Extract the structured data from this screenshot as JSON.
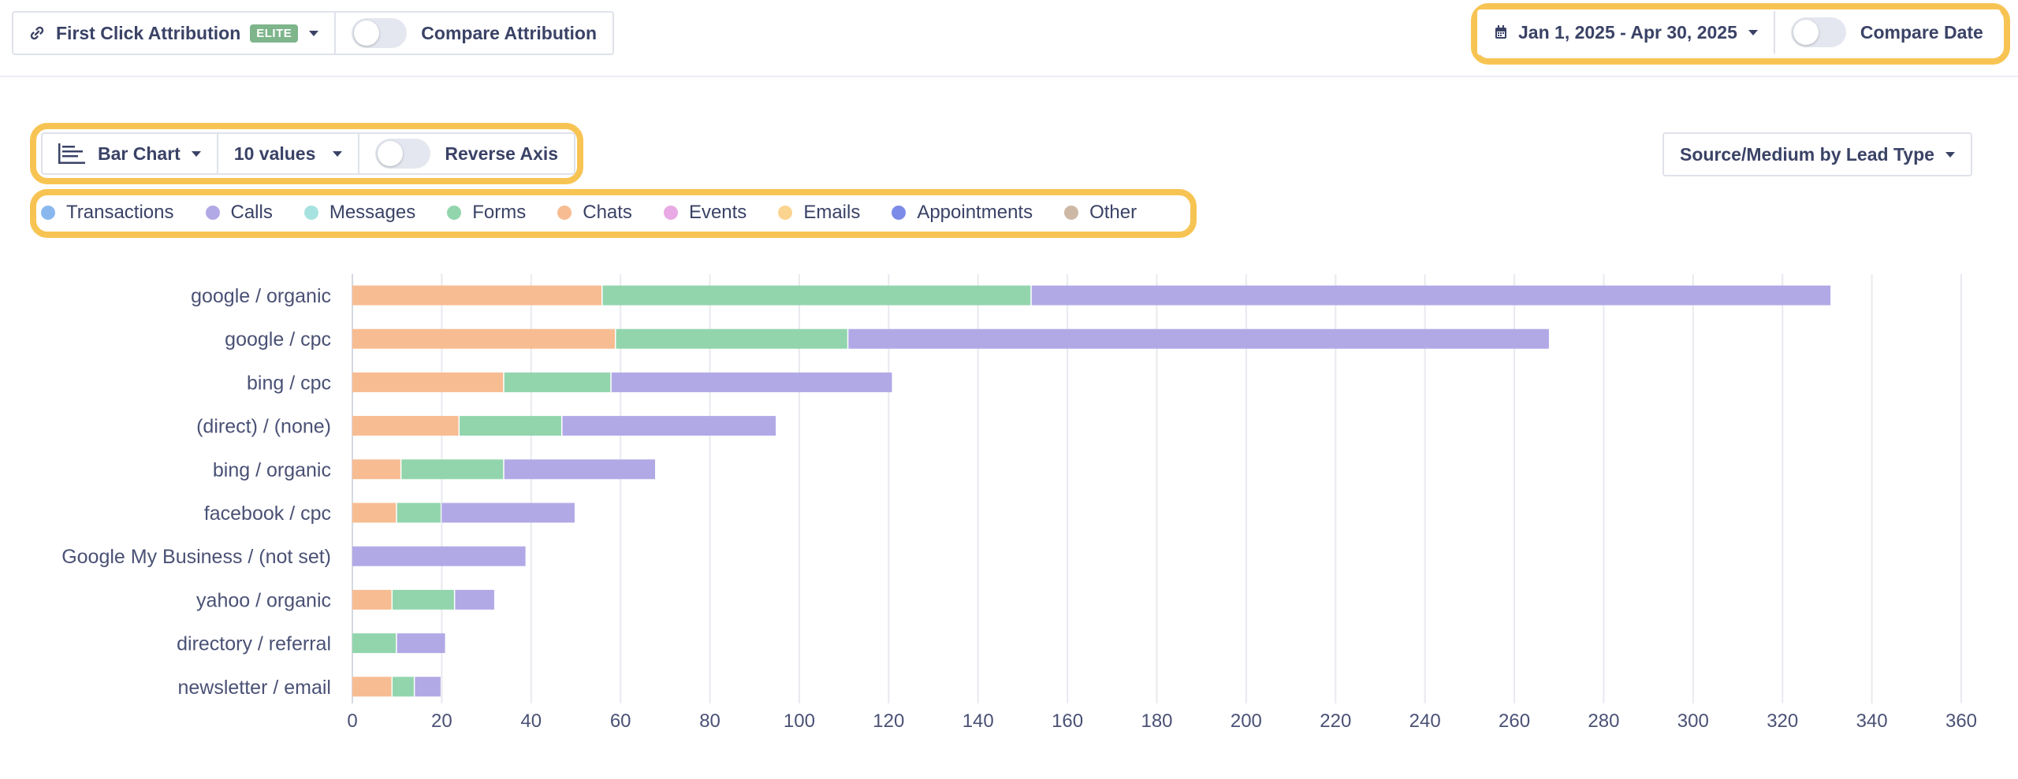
{
  "header": {
    "attribution": {
      "icon": "link-icon",
      "label": "First Click Attribution",
      "badge": "ELITE"
    },
    "compare_attribution": {
      "label": "Compare Attribution",
      "on": false
    },
    "date_range": {
      "icon": "calendar-icon",
      "label": "Jan 1, 2025 - Apr 30, 2025"
    },
    "compare_date": {
      "label": "Compare Date",
      "on": false
    }
  },
  "controls": {
    "chart_type": {
      "icon": "bar-chart-icon",
      "label": "Bar Chart"
    },
    "values_count": {
      "label": "10 values"
    },
    "reverse_axis": {
      "label": "Reverse Axis",
      "on": false
    },
    "grouping": {
      "label": "Source/Medium by Lead Type"
    }
  },
  "legend": [
    {
      "label": "Transactions",
      "color": "#8ab8ee"
    },
    {
      "label": "Calls",
      "color": "#b1a9e6"
    },
    {
      "label": "Messages",
      "color": "#a6e2e0"
    },
    {
      "label": "Forms",
      "color": "#92d5ad"
    },
    {
      "label": "Chats",
      "color": "#f7bc92"
    },
    {
      "label": "Events",
      "color": "#e8a9e4"
    },
    {
      "label": "Emails",
      "color": "#fbd48f"
    },
    {
      "label": "Appointments",
      "color": "#7d8be8"
    },
    {
      "label": "Other",
      "color": "#cdb8a6"
    }
  ],
  "colors": {
    "highlight": "#f7c453",
    "grid": "#e8eaef",
    "axis_text": "#4a5175"
  },
  "chart_data": {
    "type": "bar",
    "orientation": "horizontal",
    "stacked": true,
    "categories": [
      "google / organic",
      "google / cpc",
      "bing / cpc",
      "(direct) / (none)",
      "bing / organic",
      "facebook / cpc",
      "Google My Business / (not set)",
      "yahoo / organic",
      "directory / referral",
      "newsletter / email"
    ],
    "series": [
      {
        "name": "Chats",
        "color": "#f7bc92",
        "values": [
          56,
          59,
          34,
          24,
          11,
          10,
          0,
          9,
          0,
          9
        ]
      },
      {
        "name": "Forms",
        "color": "#92d5ad",
        "values": [
          96,
          52,
          24,
          23,
          23,
          10,
          0,
          14,
          10,
          5
        ]
      },
      {
        "name": "Calls",
        "color": "#b1a9e6",
        "values": [
          179,
          157,
          63,
          48,
          34,
          30,
          39,
          9,
          11,
          6
        ]
      }
    ],
    "xlim": [
      0,
      360
    ],
    "xticks": [
      0,
      20,
      40,
      60,
      80,
      100,
      120,
      140,
      160,
      180,
      200,
      220,
      240,
      260,
      280,
      300,
      320,
      340,
      360
    ],
    "grid": true
  }
}
